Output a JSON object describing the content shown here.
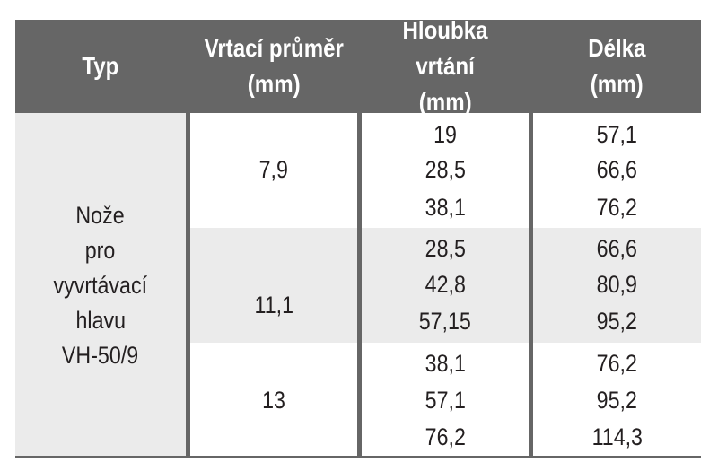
{
  "table": {
    "headers": [
      {
        "line1": "Typ",
        "line2": ""
      },
      {
        "line1": "Vrtací průměr",
        "line2": "(mm)"
      },
      {
        "line1": "Hloubka vrtání",
        "line2": "(mm)"
      },
      {
        "line1": "Délka",
        "line2": "(mm)"
      }
    ],
    "type_lines": [
      "Nože",
      "pro",
      "vyvrtávací",
      "hlavu",
      "VH-50/9"
    ],
    "groups": [
      {
        "diameter": "7,9",
        "depths": [
          "19",
          "28,5",
          "38,1"
        ],
        "lengths": [
          "57,1",
          "66,6",
          "76,2"
        ]
      },
      {
        "diameter": "11,1",
        "depths": [
          "28,5",
          "42,8",
          "57,15"
        ],
        "lengths": [
          "66,6",
          "80,9",
          "95,2"
        ]
      },
      {
        "diameter": "13",
        "depths": [
          "38,1",
          "57,1",
          "76,2"
        ],
        "lengths": [
          "76,2",
          "95,2",
          "114,3"
        ]
      }
    ]
  },
  "colors": {
    "header_bg": "#666666",
    "header_text": "#ffffff",
    "shade": "#ebebeb",
    "text": "#231f20"
  }
}
